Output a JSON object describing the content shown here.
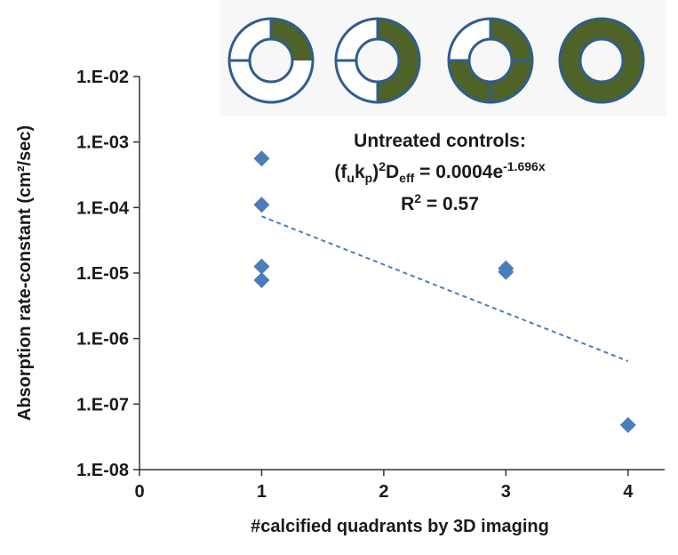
{
  "chart_data": {
    "type": "scatter",
    "x_label": "#calcified quadrants by 3D imaging",
    "y_label": "Absorption rate-constant (cm²/sec)",
    "xlim": [
      0,
      4.3
    ],
    "xticks": [
      0,
      1,
      2,
      3,
      4
    ],
    "ylim": [
      1e-08,
      0.01
    ],
    "log_y": true,
    "yticks": [
      {
        "value": 1e-08,
        "label": "1.E-08"
      },
      {
        "value": 1e-07,
        "label": "1.E-07"
      },
      {
        "value": 1e-06,
        "label": "1.E-06"
      },
      {
        "value": 1e-05,
        "label": "1.E-05"
      },
      {
        "value": 0.0001,
        "label": "1.E-04"
      },
      {
        "value": 0.001,
        "label": "1.E-03"
      },
      {
        "value": 0.01,
        "label": "1.E-02"
      }
    ],
    "series": [
      {
        "color": "#4a7ebb",
        "x": [
          1,
          1,
          1,
          1,
          3,
          3,
          4
        ],
        "values": [
          0.00056,
          0.00011,
          1.26e-05,
          7.8e-06,
          1.18e-05,
          1.04e-05,
          4.8e-08
        ]
      }
    ],
    "trendline": {
      "coefficient": 0.0004,
      "exponent": -1.696,
      "x": [
        1,
        4
      ],
      "color": "#4a7ebb"
    },
    "annotation": {
      "heading": "Untreated controls:",
      "equation": [
        "(f",
        "u",
        "k",
        "p",
        ")",
        "2",
        "D",
        "eff",
        " = 0.0004e",
        "-1.696x"
      ],
      "r2": [
        "R",
        "2",
        " = 0.57"
      ]
    }
  }
}
